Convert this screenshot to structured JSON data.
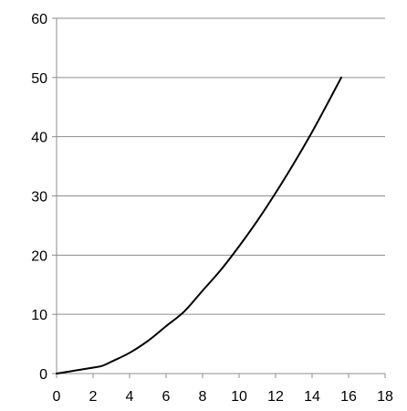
{
  "chart_data": {
    "type": "line",
    "title": "",
    "xlabel": "",
    "ylabel": "",
    "xlim": [
      0,
      18
    ],
    "ylim": [
      0,
      60
    ],
    "x_ticks": [
      "0",
      "2",
      "4",
      "6",
      "8",
      "10",
      "12",
      "14",
      "16",
      "18"
    ],
    "y_ticks": [
      "0",
      "10",
      "20",
      "30",
      "40",
      "50",
      "60"
    ],
    "grid": "horizontal",
    "legend": "none",
    "series": [
      {
        "color": "#000000",
        "x": [
          0,
          1,
          2,
          2.5,
          3,
          4,
          5,
          6,
          7,
          8,
          9,
          10,
          11,
          12,
          13,
          14,
          15,
          15.6
        ],
        "y": [
          0,
          0.5,
          1,
          1.3,
          2,
          3.5,
          5.5,
          8,
          10.5,
          14,
          17.5,
          21.5,
          25.8,
          30.5,
          35.5,
          40.8,
          46.5,
          50
        ]
      }
    ],
    "gridline_color": "#8c8c8c",
    "axis_color": "#8c8c8c"
  }
}
